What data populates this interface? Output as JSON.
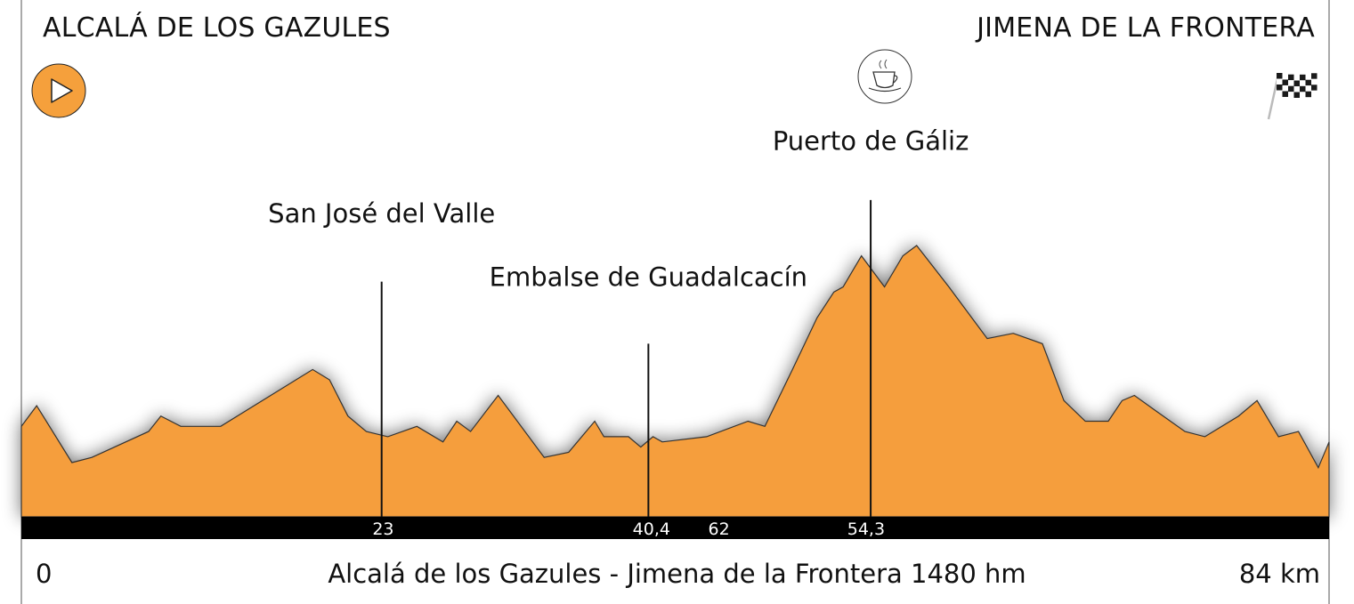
{
  "header": {
    "start_town": "ALCALÁ DE LOS GAZULES",
    "end_town": "JIMENA DE LA FRONTERA"
  },
  "icons": {
    "start": "play-button-icon",
    "summit": "coffee-cup-icon",
    "finish": "checkered-flag-icon"
  },
  "colors": {
    "profile_fill": "#f59e3c",
    "profile_stroke": "#333333",
    "km_bar": "#000000",
    "start_icon": "#f5a03c"
  },
  "footer": {
    "start_km": "0",
    "route": "Alcalá de los Gazules - Jimena de la Frontera 1480 hm",
    "end_km": "84 km"
  },
  "chart_data": {
    "type": "area",
    "x_range": [
      0,
      84
    ],
    "y_range": [
      0,
      1
    ],
    "profile": [
      [
        0,
        0.175
      ],
      [
        1,
        0.215
      ],
      [
        3.3,
        0.105
      ],
      [
        4.6,
        0.115
      ],
      [
        8.3,
        0.165
      ],
      [
        9.1,
        0.195
      ],
      [
        10.4,
        0.175
      ],
      [
        13,
        0.175
      ],
      [
        19,
        0.285
      ],
      [
        20.1,
        0.265
      ],
      [
        21.3,
        0.195
      ],
      [
        22.5,
        0.165
      ],
      [
        23.9,
        0.155
      ],
      [
        25.8,
        0.175
      ],
      [
        27.5,
        0.145
      ],
      [
        28.4,
        0.185
      ],
      [
        29.3,
        0.165
      ],
      [
        31.1,
        0.235
      ],
      [
        34.1,
        0.115
      ],
      [
        35.7,
        0.125
      ],
      [
        37.4,
        0.185
      ],
      [
        38,
        0.155
      ],
      [
        39.6,
        0.155
      ],
      [
        40.4,
        0.135
      ],
      [
        41.2,
        0.155
      ],
      [
        41.8,
        0.145
      ],
      [
        44.7,
        0.155
      ],
      [
        47.4,
        0.185
      ],
      [
        48.5,
        0.175
      ],
      [
        50.3,
        0.285
      ],
      [
        51.9,
        0.385
      ],
      [
        53,
        0.435
      ],
      [
        53.6,
        0.445
      ],
      [
        54.8,
        0.505
      ],
      [
        56.3,
        0.445
      ],
      [
        57.5,
        0.505
      ],
      [
        58.4,
        0.525
      ],
      [
        60.5,
        0.445
      ],
      [
        63,
        0.345
      ],
      [
        64.7,
        0.355
      ],
      [
        66.6,
        0.335
      ],
      [
        68,
        0.225
      ],
      [
        69.4,
        0.185
      ],
      [
        70.9,
        0.185
      ],
      [
        71.8,
        0.225
      ],
      [
        72.6,
        0.235
      ],
      [
        74,
        0.205
      ],
      [
        75.9,
        0.165
      ],
      [
        77.2,
        0.155
      ],
      [
        79.4,
        0.195
      ],
      [
        80.6,
        0.225
      ],
      [
        82,
        0.155
      ],
      [
        83.3,
        0.165
      ],
      [
        84.6,
        0.095
      ],
      [
        85.3,
        0.145
      ]
    ],
    "km_markers": [
      {
        "x": 23.6,
        "label": "23"
      },
      {
        "x": 41.1,
        "label": "40,4"
      },
      {
        "x": 45.5,
        "label": "62"
      },
      {
        "x": 55.1,
        "label": "54,3"
      }
    ],
    "climbs": [
      {
        "name": "San José del Valle",
        "x": 23.5,
        "line_top": 0.455,
        "label_y": 0.57
      },
      {
        "name": "Embalse de Guadalcacín",
        "x": 40.9,
        "line_top": 0.335,
        "label_y": 0.447
      },
      {
        "name": "Puerto de Gáliz",
        "x": 55.4,
        "line_top": 0.613,
        "label_y": 0.71
      }
    ]
  }
}
